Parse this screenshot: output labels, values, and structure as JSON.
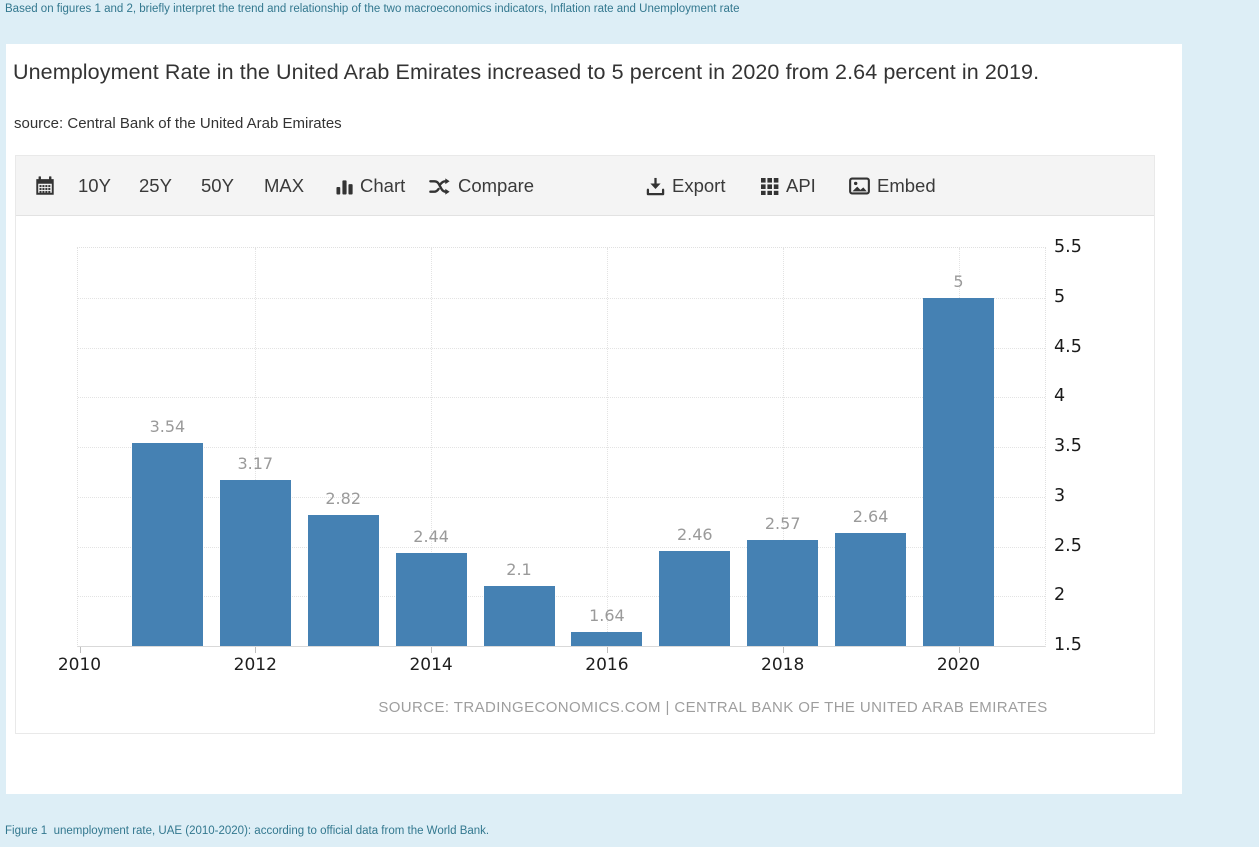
{
  "note": "Based on figures 1 and 2, briefly interpret the trend and relationship of the two macroeconomics indicators, Inflation rate and Unemployment rate",
  "header": {
    "title": "Unemployment Rate in the United Arab Emirates increased to 5 percent in 2020 from 2.64 percent in 2019.",
    "source": "source: Central Bank of the United Arab Emirates"
  },
  "toolbar": {
    "range_10y": "10Y",
    "range_25y": "25Y",
    "range_50y": "50Y",
    "range_max": "MAX",
    "chart": "Chart",
    "compare": "Compare",
    "export": "Export",
    "api": "API",
    "embed": "Embed"
  },
  "chart_data": {
    "type": "bar",
    "title": "Unemployment Rate in the United Arab Emirates",
    "categories": [
      2011,
      2012,
      2013,
      2014,
      2015,
      2016,
      2017,
      2018,
      2019,
      2020
    ],
    "values": [
      3.54,
      3.17,
      2.82,
      2.44,
      2.1,
      1.64,
      2.46,
      2.57,
      2.64,
      5
    ],
    "value_labels": [
      "3.54",
      "3.17",
      "2.82",
      "2.44",
      "2.1",
      "1.64",
      "2.46",
      "2.57",
      "2.64",
      "5"
    ],
    "x_tick_labels": [
      "2010",
      "2012",
      "2014",
      "2016",
      "2018",
      "2020"
    ],
    "x_tick_years": [
      2010,
      2012,
      2014,
      2016,
      2018,
      2020
    ],
    "y_ticks": [
      "5.5",
      "5",
      "4.5",
      "4",
      "3.5",
      "3",
      "2.5",
      "2",
      "1.5"
    ],
    "ylim": [
      1.5,
      5.5
    ],
    "xlabel": "",
    "ylabel": "",
    "grid": "dotted",
    "legend": "none",
    "bar_color": "#4581b3",
    "attribution": "SOURCE: TRADINGECONOMICS.COM | CENTRAL BANK OF THE UNITED ARAB EMIRATES"
  },
  "caption": "Figure 1  unemployment rate, UAE (2010-2020): according to official data from the World Bank.",
  "colors": {
    "page_background": "#ddeef6",
    "card_background": "#ffffff",
    "toolbar_background": "#f4f4f4",
    "bar": "#4581b3",
    "teal_text": "#33788f",
    "gridline": "#e3e3e3",
    "muted_label": "#9a9a9a"
  }
}
